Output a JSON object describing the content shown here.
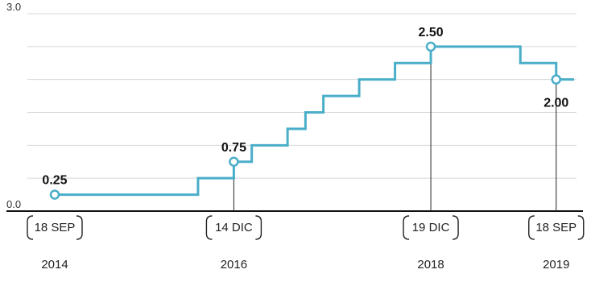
{
  "chart_data": {
    "type": "line",
    "step": true,
    "title": "",
    "xlabel": "",
    "ylabel": "",
    "ylim": [
      0,
      3.0
    ],
    "grid": true,
    "yticks": [
      {
        "value": 3.0,
        "label": "3.0"
      },
      {
        "value": 0.0,
        "label": "0.0"
      }
    ],
    "series": [
      {
        "color": "#4aaec9",
        "values": [
          0.25,
          0.25,
          0.5,
          0.5,
          0.75,
          1.0,
          1.0,
          1.25,
          1.5,
          1.75,
          2.0,
          2.25,
          2.5,
          2.5,
          2.25,
          2.0
        ],
        "steps": [
          0,
          5,
          8,
          9,
          10,
          11,
          12,
          13,
          14,
          15,
          17,
          19,
          21,
          23,
          26,
          28
        ]
      }
    ],
    "highlights": [
      {
        "label": "0.25",
        "value": 0.25,
        "step": 0,
        "date": "18 SEP",
        "year": "2014"
      },
      {
        "label": "0.75",
        "value": 0.75,
        "step": 10,
        "date": "14 DIC",
        "year": "2016"
      },
      {
        "label": "2.50",
        "value": 2.5,
        "step": 21,
        "date": "19 DIC",
        "year": "2018"
      },
      {
        "label": "2.00",
        "value": 2.0,
        "step": 28,
        "date": "18 SEP",
        "year": "2019"
      }
    ]
  }
}
